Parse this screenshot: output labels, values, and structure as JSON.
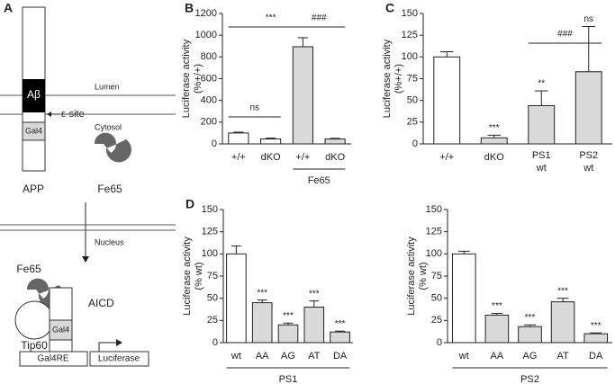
{
  "diagram": {
    "panel": "A",
    "lumen": "Lumen",
    "abeta": "Aβ",
    "epsilon_site": "ε-site",
    "cytosol": "Cytosol",
    "gal4_top": "Gal4",
    "app": "APP",
    "fe65_top": "Fe65",
    "nucleus": "Nucleus",
    "fe65_bottom": "Fe65",
    "aicd": "AICD",
    "tip60": "Tip60",
    "gal4_bottom": "Gal4",
    "gal4re": "Gal4RE",
    "luciferase": "Luciferase"
  },
  "chart_data": [
    {
      "type": "bar",
      "panel": "B",
      "y_label": [
        "Luciferase activity",
        "(%+/+)"
      ],
      "categories": [
        "+/+",
        "dKO",
        "+/+",
        "dKO"
      ],
      "group_label": "Fe65",
      "values": [
        100,
        45,
        894,
        45
      ],
      "errors": [
        8,
        8,
        83,
        6
      ],
      "colors": [
        "#ffffff",
        "#ffffff",
        "#d9d9d9",
        "#d9d9d9"
      ],
      "annotations": [
        "***",
        "###",
        "ns"
      ],
      "ylim": [
        0,
        1200
      ],
      "yticks": [
        0,
        200,
        400,
        600,
        800,
        1000,
        1200
      ]
    },
    {
      "type": "bar",
      "panel": "C",
      "y_label": [
        "Luciferase activity",
        "(%+/+)"
      ],
      "categories": [
        "+/+",
        "dKO",
        [
          "PS1",
          "wt"
        ],
        [
          "PS2",
          "wt"
        ]
      ],
      "values": [
        100,
        7,
        44,
        83
      ],
      "errors": [
        6,
        3,
        17,
        52
      ],
      "colors": [
        "#ffffff",
        "#d9d9d9",
        "#d9d9d9",
        "#d9d9d9"
      ],
      "annotations": [
        "###",
        "ns",
        "**",
        "***"
      ],
      "ylim": [
        0,
        150
      ],
      "yticks": [
        0,
        25,
        50,
        75,
        100,
        125,
        150
      ]
    },
    {
      "type": "bar",
      "panel": "D",
      "y_label": [
        "Luciferase activity",
        "(% wt)"
      ],
      "categories": [
        "wt",
        "AA",
        "AG",
        "AT",
        "DA"
      ],
      "group_label": "PS1",
      "values": [
        100,
        45,
        20,
        40,
        12
      ],
      "errors": [
        9,
        3,
        2,
        7,
        1
      ],
      "colors": [
        "#ffffff",
        "#d9d9d9",
        "#d9d9d9",
        "#d9d9d9",
        "#d9d9d9"
      ],
      "annotations": [
        "***",
        "***",
        "***",
        "***"
      ],
      "ylim": [
        0,
        150
      ],
      "yticks": [
        0,
        25,
        50,
        75,
        100,
        125,
        150
      ]
    },
    {
      "type": "bar",
      "y_label": [
        "Luciferase activity",
        "(% wt)"
      ],
      "categories": [
        "wt",
        "AA",
        "AG",
        "AT",
        "DA"
      ],
      "group_label": "PS2",
      "values": [
        100,
        31,
        18,
        46,
        10
      ],
      "errors": [
        3,
        2,
        2,
        4,
        1
      ],
      "colors": [
        "#ffffff",
        "#d9d9d9",
        "#d9d9d9",
        "#d9d9d9",
        "#d9d9d9"
      ],
      "annotations": [
        "***",
        "***",
        "***",
        "***"
      ],
      "ylim": [
        0,
        150
      ],
      "yticks": [
        0,
        25,
        50,
        75,
        100,
        125,
        150
      ]
    }
  ]
}
